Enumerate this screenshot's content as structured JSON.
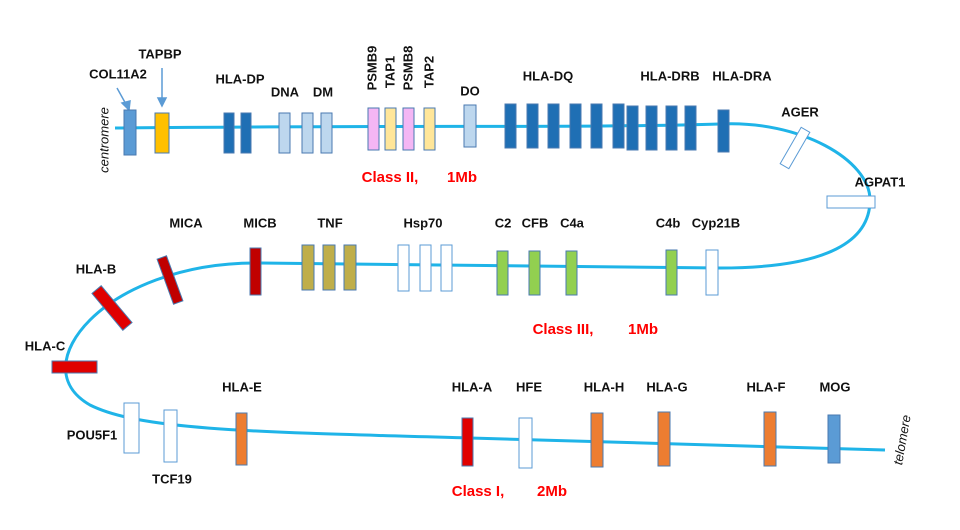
{
  "centromere": "centromere",
  "telomere": "telomere",
  "class_ii": {
    "label": "Class II,",
    "size": "1Mb",
    "genes": [
      "COL11A2",
      "TAPBP",
      "HLA-DP",
      "DNA",
      "DM",
      "PSMB9",
      "TAP1",
      "PSMB8",
      "TAP2",
      "DO",
      "HLA-DQ",
      "HLA-DRB",
      "HLA-DRA",
      "AGER",
      "AGPAT1"
    ]
  },
  "class_iii": {
    "label": "Class III,",
    "size": "1Mb",
    "genes": [
      "MICA",
      "MICB",
      "TNF",
      "Hsp70",
      "C2",
      "CFB",
      "C4a",
      "C4b",
      "Cyp21B",
      "HLA-B",
      "HLA-C"
    ]
  },
  "class_i": {
    "label": "Class I,",
    "size": "2Mb",
    "genes": [
      "POU5F1",
      "TCF19",
      "HLA-E",
      "HLA-A",
      "HFE",
      "HLA-H",
      "HLA-G",
      "HLA-F",
      "MOG"
    ]
  }
}
